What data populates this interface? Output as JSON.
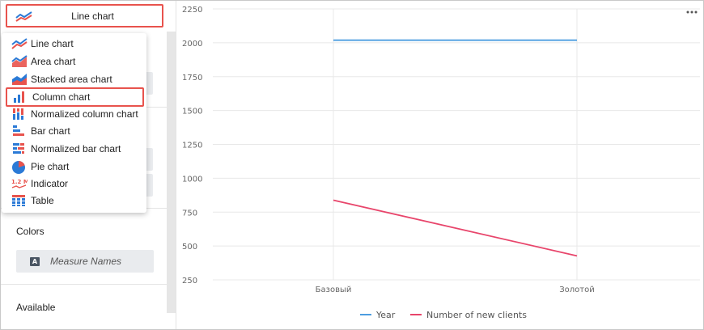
{
  "visualization": {
    "selected_label": "Line chart",
    "selected_icon": "line-chart-icon",
    "options": [
      {
        "label": "Line chart",
        "icon": "line-chart-icon"
      },
      {
        "label": "Area chart",
        "icon": "area-chart-icon"
      },
      {
        "label": "Stacked area chart",
        "icon": "stacked-area-chart-icon"
      },
      {
        "label": "Column chart",
        "icon": "column-chart-icon",
        "highlighted": true
      },
      {
        "label": "Normalized column chart",
        "icon": "normalized-column-chart-icon"
      },
      {
        "label": "Bar chart",
        "icon": "bar-chart-icon"
      },
      {
        "label": "Normalized bar chart",
        "icon": "normalized-bar-chart-icon"
      },
      {
        "label": "Pie chart",
        "icon": "pie-chart-icon"
      },
      {
        "label": "Indicator",
        "icon": "indicator-icon",
        "icon_text": "1.2 M"
      },
      {
        "label": "Table",
        "icon": "table-icon"
      }
    ]
  },
  "sections": {
    "colors": {
      "title": "Colors",
      "item": {
        "label": "Measure Names",
        "badge": "A"
      }
    },
    "available": {
      "title": "Available"
    }
  },
  "colors": {
    "highlight_border": "#e8534d",
    "series_year": "#4c9de0",
    "series_clients": "#e8456b",
    "icon_blue": "#2b7ad6",
    "icon_red": "#e8534d"
  },
  "chart_data": {
    "type": "line",
    "categories": [
      "Базовый",
      "Золотой"
    ],
    "series": [
      {
        "name": "Year",
        "values": [
          2019,
          2019
        ],
        "color": "#4c9de0"
      },
      {
        "name": "Number of new clients",
        "values": [
          838,
          427
        ],
        "color": "#e8456b"
      }
    ],
    "yticks": [
      250,
      500,
      750,
      1000,
      1250,
      1500,
      1750,
      2000,
      2250
    ],
    "ylim": [
      250,
      2250
    ],
    "grid": true,
    "legend": "bottom-center"
  }
}
